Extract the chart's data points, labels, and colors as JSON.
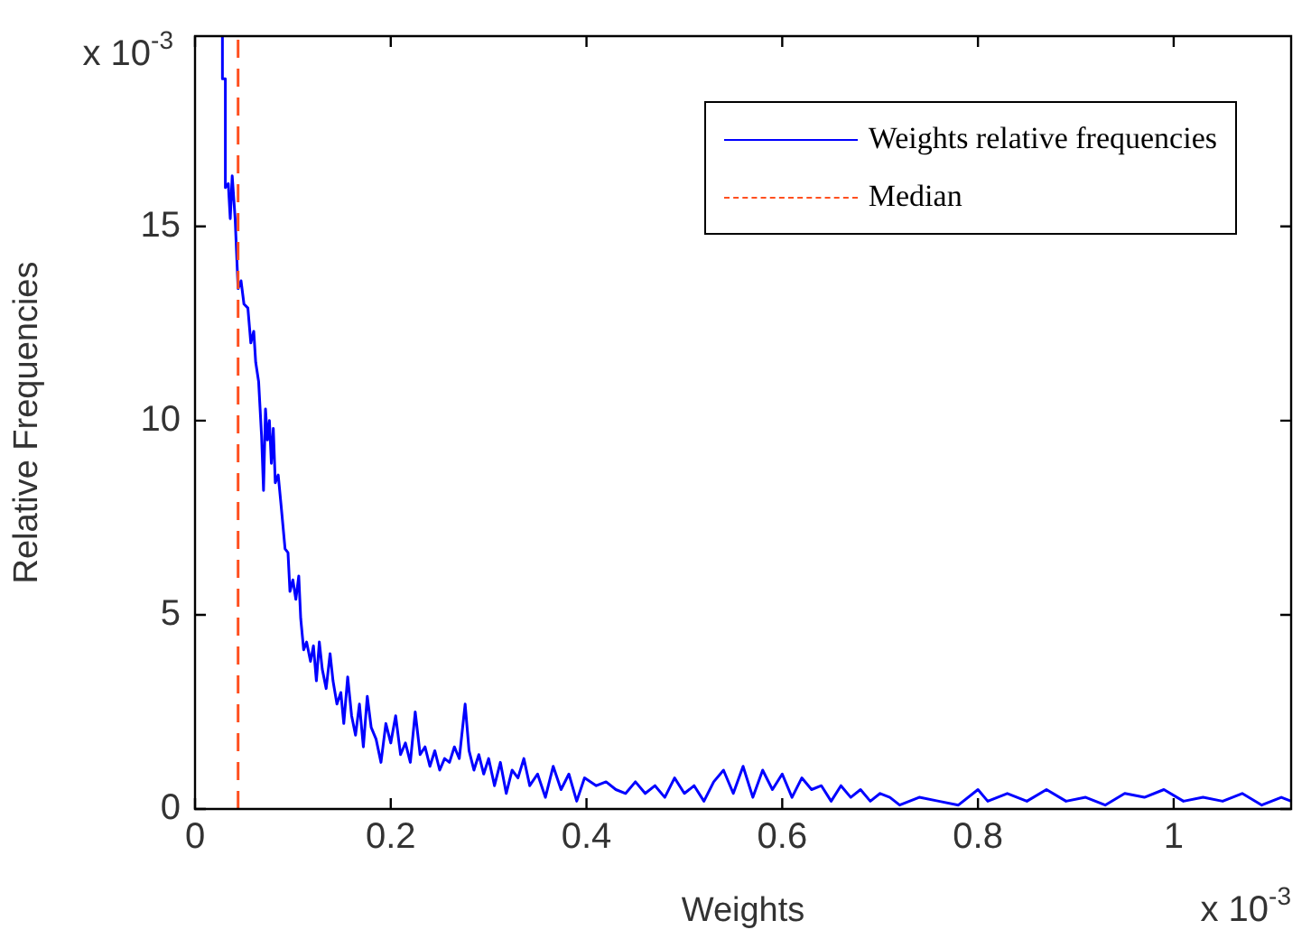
{
  "chart_data": {
    "type": "line",
    "xlabel": "Weights",
    "ylabel": "Relative Frequencies",
    "xlim": [
      0,
      1.12
    ],
    "xticks": [
      0,
      0.2,
      0.4,
      0.6,
      0.8,
      1
    ],
    "ylim": [
      0,
      19.9
    ],
    "yticks": [
      0,
      5,
      10,
      15
    ],
    "grid": false,
    "legend": "top right",
    "marker": "none",
    "line_style": "solid",
    "annotations": [
      "x 10$^{-3}$",
      "x 10$^{-3}$"
    ],
    "series": [
      {
        "name": "Median",
        "color": "#ff4f1f",
        "line_style": "dashed",
        "x": [
          0.044,
          0.044
        ],
        "values": [
          0,
          19.9
        ]
      },
      {
        "name": "Weights relative frequencies",
        "color": "#0000ff",
        "x": [
          0.028,
          0.028,
          0.031,
          0.031,
          0.034,
          0.036,
          0.038,
          0.041,
          0.044,
          0.047,
          0.05,
          0.054,
          0.057,
          0.06,
          0.062,
          0.065,
          0.068,
          0.07,
          0.072,
          0.074,
          0.076,
          0.078,
          0.08,
          0.082,
          0.085,
          0.088,
          0.092,
          0.095,
          0.097,
          0.1,
          0.103,
          0.106,
          0.108,
          0.111,
          0.114,
          0.118,
          0.121,
          0.124,
          0.127,
          0.13,
          0.134,
          0.138,
          0.141,
          0.145,
          0.149,
          0.152,
          0.156,
          0.16,
          0.164,
          0.168,
          0.172,
          0.176,
          0.18,
          0.185,
          0.19,
          0.195,
          0.2,
          0.205,
          0.21,
          0.215,
          0.22,
          0.225,
          0.23,
          0.235,
          0.24,
          0.245,
          0.25,
          0.255,
          0.26,
          0.265,
          0.27,
          0.276,
          0.28,
          0.285,
          0.29,
          0.295,
          0.3,
          0.306,
          0.312,
          0.318,
          0.324,
          0.33,
          0.336,
          0.342,
          0.35,
          0.358,
          0.366,
          0.374,
          0.382,
          0.39,
          0.398,
          0.41,
          0.42,
          0.43,
          0.44,
          0.45,
          0.46,
          0.47,
          0.48,
          0.49,
          0.5,
          0.51,
          0.52,
          0.53,
          0.54,
          0.55,
          0.56,
          0.57,
          0.58,
          0.59,
          0.6,
          0.61,
          0.62,
          0.63,
          0.64,
          0.65,
          0.66,
          0.67,
          0.68,
          0.69,
          0.7,
          0.71,
          0.72,
          0.74,
          0.76,
          0.78,
          0.8,
          0.81,
          0.83,
          0.85,
          0.87,
          0.89,
          0.91,
          0.93,
          0.95,
          0.97,
          0.99,
          1.01,
          1.03,
          1.05,
          1.07,
          1.09,
          1.11,
          1.12
        ],
        "values": [
          19.9,
          18.8,
          18.8,
          16.0,
          16.1,
          15.2,
          16.3,
          15.2,
          13.4,
          13.6,
          13.0,
          12.9,
          12.0,
          12.3,
          11.5,
          11.0,
          9.6,
          8.2,
          10.3,
          9.5,
          10.0,
          8.9,
          9.8,
          8.4,
          8.6,
          7.8,
          6.7,
          6.6,
          5.6,
          5.9,
          5.4,
          6.0,
          4.9,
          4.1,
          4.3,
          3.8,
          4.2,
          3.3,
          4.3,
          3.6,
          3.1,
          4.0,
          3.3,
          2.7,
          3.0,
          2.2,
          3.4,
          2.4,
          1.9,
          2.7,
          1.6,
          2.9,
          2.1,
          1.8,
          1.2,
          2.2,
          1.7,
          2.4,
          1.4,
          1.7,
          1.2,
          2.5,
          1.4,
          1.6,
          1.1,
          1.5,
          1.0,
          1.3,
          1.2,
          1.6,
          1.3,
          2.7,
          1.5,
          1.0,
          1.4,
          0.9,
          1.3,
          0.6,
          1.2,
          0.4,
          1.0,
          0.8,
          1.3,
          0.6,
          0.9,
          0.3,
          1.1,
          0.5,
          0.9,
          0.2,
          0.8,
          0.6,
          0.7,
          0.5,
          0.4,
          0.7,
          0.4,
          0.6,
          0.3,
          0.8,
          0.4,
          0.6,
          0.2,
          0.7,
          1.0,
          0.4,
          1.1,
          0.3,
          1.0,
          0.5,
          0.9,
          0.3,
          0.8,
          0.5,
          0.6,
          0.2,
          0.6,
          0.3,
          0.5,
          0.2,
          0.4,
          0.3,
          0.1,
          0.3,
          0.2,
          0.1,
          0.5,
          0.2,
          0.4,
          0.2,
          0.5,
          0.2,
          0.3,
          0.1,
          0.4,
          0.3,
          0.5,
          0.2,
          0.3,
          0.2,
          0.4,
          0.1,
          0.3,
          0.2
        ]
      }
    ]
  }
}
